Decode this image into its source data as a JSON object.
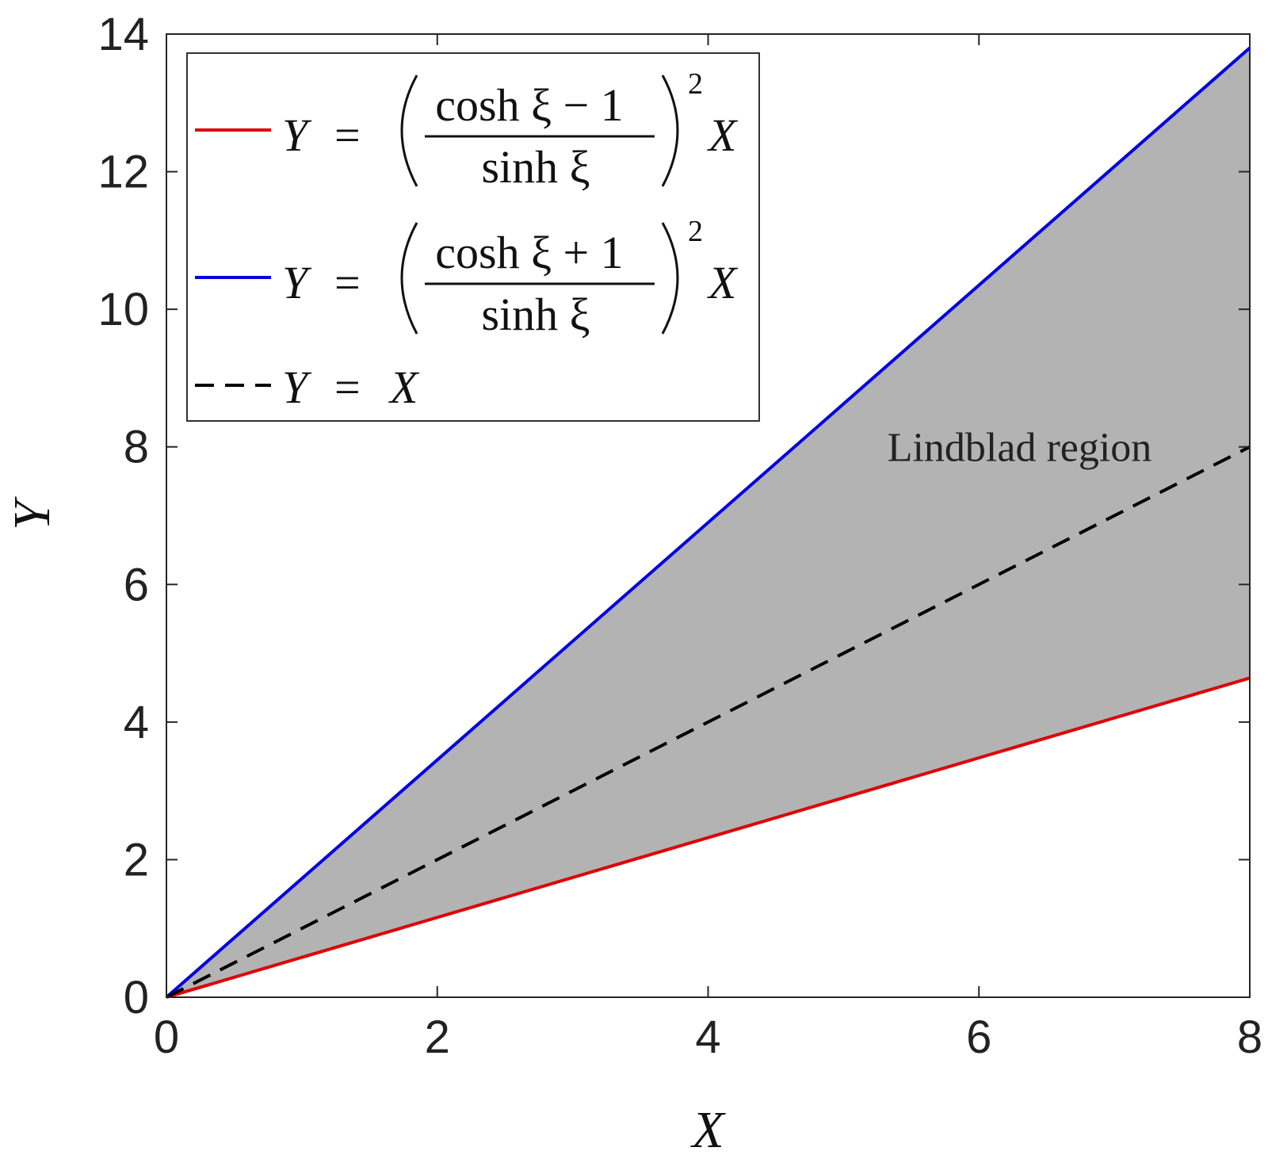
{
  "chart_data": {
    "type": "line",
    "xlabel": "X",
    "ylabel": "Y",
    "xlim": [
      0,
      8
    ],
    "ylim": [
      0,
      14
    ],
    "xticks": [
      0,
      2,
      4,
      6,
      8
    ],
    "yticks": [
      0,
      2,
      4,
      6,
      8,
      10,
      12,
      14
    ],
    "xtick_labels": [
      "0",
      "2",
      "4",
      "6",
      "8"
    ],
    "ytick_labels": [
      "0",
      "2",
      "4",
      "6",
      "8",
      "10",
      "12",
      "14"
    ],
    "grid": false,
    "legend_position": "top-left",
    "series": [
      {
        "name": "Y = ((cosh ξ − 1)/sinh ξ)² X",
        "color": "#e00000",
        "style": "solid",
        "x": [
          0,
          8
        ],
        "y": [
          0,
          4.64
        ]
      },
      {
        "name": "Y = ((cosh ξ + 1)/sinh ξ)² X",
        "color": "#0000e0",
        "style": "solid",
        "x": [
          0,
          8
        ],
        "y": [
          0,
          13.8
        ]
      },
      {
        "name": "Y = X",
        "color": "#000000",
        "style": "dashed",
        "x": [
          0,
          8
        ],
        "y": [
          0,
          8
        ]
      }
    ],
    "shaded_region": {
      "color": "#b3b3b3",
      "x": [
        0,
        8
      ],
      "lower_y": [
        0,
        4.64
      ],
      "upper_y": [
        0,
        13.8
      ]
    },
    "annotations": [
      {
        "text": "Lindblad region",
        "x": 6.3,
        "y": 8.0
      }
    ]
  },
  "legend": {
    "entries": [
      {
        "lhs": "Y",
        "eq": "=",
        "num": "cosh ξ − 1",
        "den": "sinh ξ",
        "power": "2",
        "rhs": "X"
      },
      {
        "lhs": "Y",
        "eq": "=",
        "num": "cosh ξ + 1",
        "den": "sinh ξ",
        "power": "2",
        "rhs": "X"
      },
      {
        "lhs": "Y",
        "eq": "=",
        "rhs": "X"
      }
    ]
  }
}
